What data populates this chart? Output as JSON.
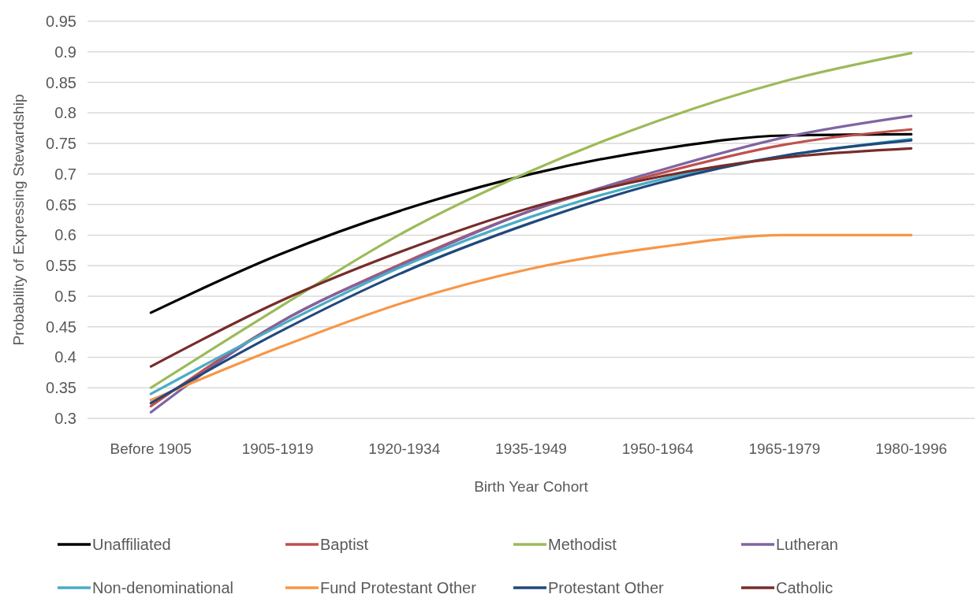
{
  "chart_data": {
    "type": "line",
    "xlabel": "Birth Year Cohort",
    "ylabel": "Probability of Expressing Stewardship",
    "categories": [
      "Before 1905",
      "1905-1919",
      "1920-1934",
      "1935-1949",
      "1950-1964",
      "1965-1979",
      "1980-1996"
    ],
    "ylim": [
      0.3,
      0.95
    ],
    "yticks": [
      0.3,
      0.35,
      0.4,
      0.45,
      0.5,
      0.55,
      0.6,
      0.65,
      0.7,
      0.75,
      0.8,
      0.85,
      0.9,
      0.95
    ],
    "grid": "y",
    "legend": "bottom",
    "series": [
      {
        "name": "Unaffiliated",
        "color": "#000000",
        "values": [
          0.473,
          0.567,
          0.642,
          0.7,
          0.74,
          0.763,
          0.765
        ]
      },
      {
        "name": "Baptist",
        "color": "#c0504d",
        "values": [
          0.32,
          0.455,
          0.555,
          0.64,
          0.7,
          0.748,
          0.773
        ]
      },
      {
        "name": "Methodist",
        "color": "#9bbb59",
        "values": [
          0.35,
          0.48,
          0.605,
          0.705,
          0.787,
          0.852,
          0.898
        ]
      },
      {
        "name": "Lutheran",
        "color": "#8064a2",
        "values": [
          0.31,
          0.455,
          0.553,
          0.64,
          0.705,
          0.76,
          0.795
        ]
      },
      {
        "name": "Non-denominational",
        "color": "#4bacc6",
        "values": [
          0.34,
          0.45,
          0.55,
          0.63,
          0.69,
          0.73,
          0.757
        ]
      },
      {
        "name": "Fund Protestant Other",
        "color": "#f79646",
        "values": [
          0.33,
          0.415,
          0.49,
          0.545,
          0.58,
          0.6,
          0.6
        ]
      },
      {
        "name": "Protestant Other",
        "color": "#1f497d",
        "values": [
          0.325,
          0.44,
          0.54,
          0.62,
          0.685,
          0.73,
          0.755
        ]
      },
      {
        "name": "Catholic",
        "color": "#772c2a",
        "values": [
          0.385,
          0.49,
          0.575,
          0.645,
          0.695,
          0.727,
          0.742
        ]
      }
    ]
  }
}
